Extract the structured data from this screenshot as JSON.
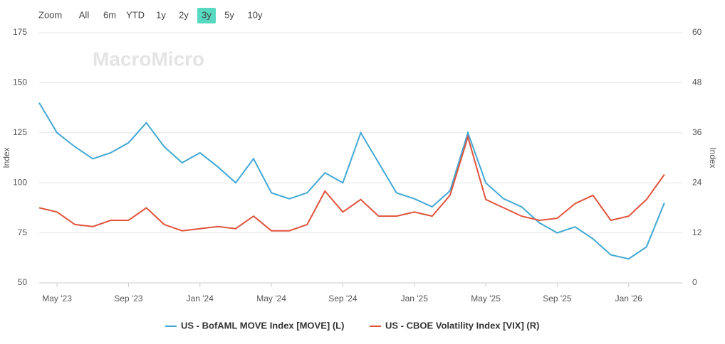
{
  "range_selector": {
    "label": "Zoom",
    "buttons": [
      "All",
      "6m",
      "YTD",
      "1y",
      "2y",
      "3y",
      "5y",
      "10y"
    ],
    "selected": "3y"
  },
  "chart_data": {
    "type": "line",
    "watermark": "MacroMicro",
    "y_label": "Index",
    "y2_label": "Index",
    "x": [
      "2023-04",
      "2023-05",
      "2023-06",
      "2023-07",
      "2023-08",
      "2023-09",
      "2023-10",
      "2023-11",
      "2023-12",
      "2024-01",
      "2024-02",
      "2024-03",
      "2024-04",
      "2024-05",
      "2024-06",
      "2024-07",
      "2024-08",
      "2024-09",
      "2024-10",
      "2024-11",
      "2024-12",
      "2025-01",
      "2025-02",
      "2025-03",
      "2025-04",
      "2025-05",
      "2025-06",
      "2025-07",
      "2025-08",
      "2025-09",
      "2025-10",
      "2025-11",
      "2025-12",
      "2026-01",
      "2026-02",
      "2026-03"
    ],
    "xlim": [
      "2023-04",
      "2026-04"
    ],
    "xticks": [
      {
        "value": "2023-05",
        "label": "May '23"
      },
      {
        "value": "2023-09",
        "label": "Sep '23"
      },
      {
        "value": "2024-01",
        "label": "Jan '24"
      },
      {
        "value": "2024-05",
        "label": "May '24"
      },
      {
        "value": "2024-09",
        "label": "Sep '24"
      },
      {
        "value": "2025-01",
        "label": "Jan '25"
      },
      {
        "value": "2025-05",
        "label": "May '25"
      },
      {
        "value": "2025-09",
        "label": "Sep '25"
      },
      {
        "value": "2026-01",
        "label": "Jan '26"
      }
    ],
    "ylim": [
      50,
      175
    ],
    "yticks": [
      50,
      75,
      100,
      125,
      150,
      175
    ],
    "y2lim": [
      0,
      60
    ],
    "y2ticks": [
      0,
      12,
      24,
      36,
      48,
      60
    ],
    "grid": true,
    "series": [
      {
        "name": "US - BofAML MOVE Index [MOVE] (L)",
        "color": "#41a8d4",
        "values": [
          140,
          125,
          118,
          112,
          115,
          120,
          130,
          118,
          110,
          115,
          108,
          100,
          112,
          95,
          92,
          95,
          105,
          100,
          125,
          110,
          95,
          92,
          88,
          96,
          125,
          100,
          92,
          88,
          80,
          75,
          78,
          72,
          64,
          62,
          68,
          90
        ]
      },
      {
        "name": "US - CBOE Volatility Index [VIX] (R)",
        "color": "#e0533c",
        "axis": "y2",
        "values": [
          18,
          17,
          14,
          13.5,
          15,
          15,
          18,
          14,
          12.5,
          13,
          13.5,
          13,
          16,
          12.5,
          12.5,
          14,
          22,
          17,
          20,
          16,
          16,
          17,
          16,
          21,
          35,
          20,
          18,
          16,
          15,
          15.5,
          19,
          21,
          15,
          16,
          20,
          26
        ]
      }
    ]
  }
}
